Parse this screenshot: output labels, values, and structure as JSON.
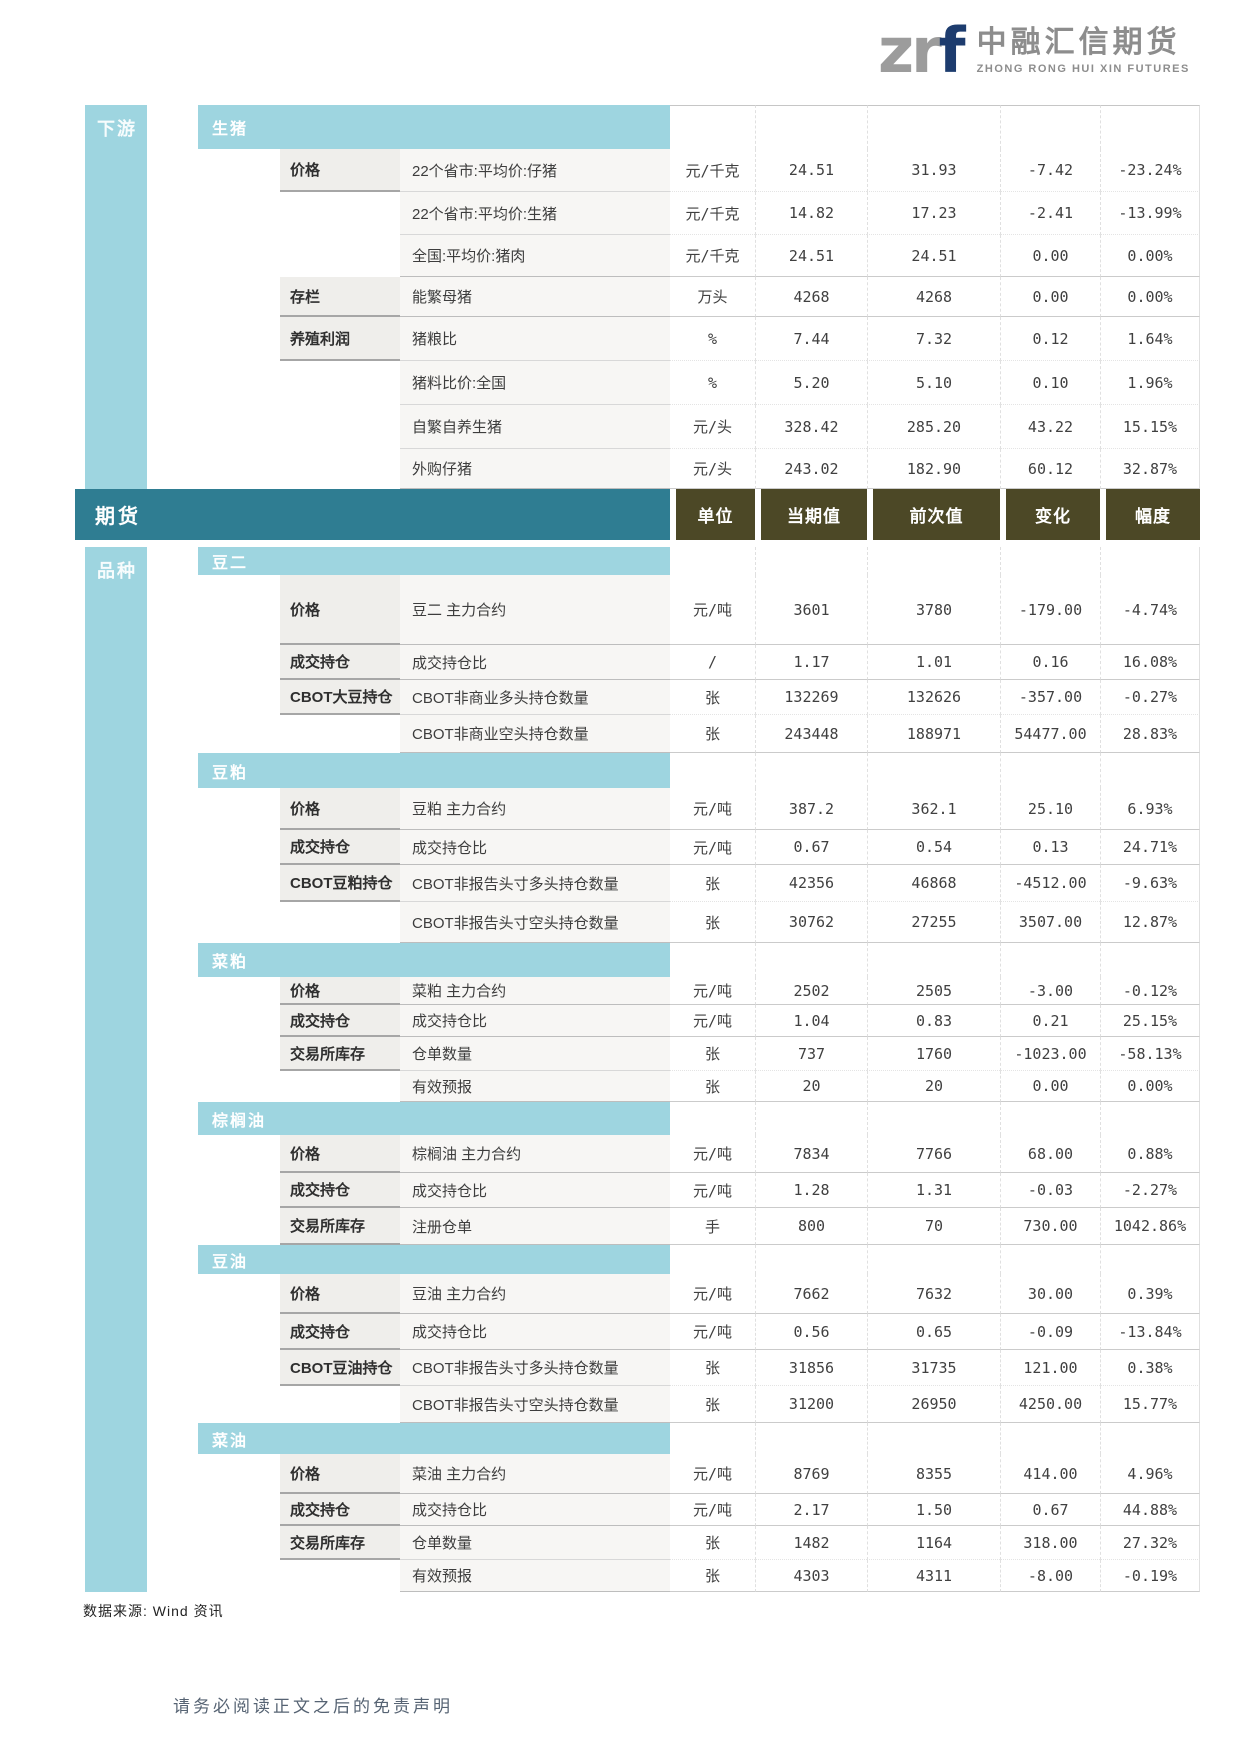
{
  "logo": {
    "mark_zr": "zr",
    "mark_f": "f",
    "company_cn": "中融汇信期货",
    "company_en": "ZHONG RONG HUI XIN FUTURES"
  },
  "columns": [
    "单位",
    "当期值",
    "前次值",
    "变化",
    "幅度"
  ],
  "futures_band_label": "期货",
  "downstream": {
    "sidebar_label": "下游",
    "sections": [
      {
        "title": "生猪",
        "rows": [
          {
            "category": "价格",
            "indicator": "22个省市:平均价:仔猪",
            "unit": "元/千克",
            "current": "24.51",
            "previous": "31.93",
            "change": "-7.42",
            "pct": "-23.24%"
          },
          {
            "indicator": "22个省市:平均价:生猪",
            "unit": "元/千克",
            "current": "14.82",
            "previous": "17.23",
            "change": "-2.41",
            "pct": "-13.99%"
          },
          {
            "indicator": "全国:平均价:猪肉",
            "unit": "元/千克",
            "current": "24.51",
            "previous": "24.51",
            "change": "0.00",
            "pct": "0.00%"
          },
          {
            "category": "存栏",
            "indicator": "能繁母猪",
            "unit": "万头",
            "current": "4268",
            "previous": "4268",
            "change": "0.00",
            "pct": "0.00%"
          },
          {
            "category": "养殖利润",
            "indicator": "猪粮比",
            "unit": "%",
            "current": "7.44",
            "previous": "7.32",
            "change": "0.12",
            "pct": "1.64%"
          },
          {
            "indicator": "猪料比价:全国",
            "unit": "%",
            "current": "5.20",
            "previous": "5.10",
            "change": "0.10",
            "pct": "1.96%"
          },
          {
            "indicator": "自繁自养生猪",
            "unit": "元/头",
            "current": "328.42",
            "previous": "285.20",
            "change": "43.22",
            "pct": "15.15%"
          },
          {
            "indicator": "外购仔猪",
            "unit": "元/头",
            "current": "243.02",
            "previous": "182.90",
            "change": "60.12",
            "pct": "32.87%"
          }
        ]
      }
    ]
  },
  "varieties": {
    "sidebar_label": "品种",
    "sections": [
      {
        "title": "豆二",
        "rows": [
          {
            "category": "价格",
            "indicator": "豆二 主力合约",
            "unit": "元/吨",
            "current": "3601",
            "previous": "3780",
            "change": "-179.00",
            "pct": "-4.74%"
          },
          {
            "category": "成交持仓",
            "indicator": "成交持仓比",
            "unit": "/",
            "current": "1.17",
            "previous": "1.01",
            "change": "0.16",
            "pct": "16.08%"
          },
          {
            "category": "CBOT大豆持仓",
            "indicator": "CBOT非商业多头持仓数量",
            "unit": "张",
            "current": "132269",
            "previous": "132626",
            "change": "-357.00",
            "pct": "-0.27%"
          },
          {
            "indicator": "CBOT非商业空头持仓数量",
            "unit": "张",
            "current": "243448",
            "previous": "188971",
            "change": "54477.00",
            "pct": "28.83%"
          }
        ]
      },
      {
        "title": "豆粕",
        "rows": [
          {
            "category": "价格",
            "indicator": "豆粕 主力合约",
            "unit": "元/吨",
            "current": "387.2",
            "previous": "362.1",
            "change": "25.10",
            "pct": "6.93%"
          },
          {
            "category": "成交持仓",
            "indicator": "成交持仓比",
            "unit": "元/吨",
            "current": "0.67",
            "previous": "0.54",
            "change": "0.13",
            "pct": "24.71%"
          },
          {
            "category": "CBOT豆粕持仓",
            "indicator": "CBOT非报告头寸多头持仓数量",
            "unit": "张",
            "current": "42356",
            "previous": "46868",
            "change": "-4512.00",
            "pct": "-9.63%"
          },
          {
            "indicator": "CBOT非报告头寸空头持仓数量",
            "unit": "张",
            "current": "30762",
            "previous": "27255",
            "change": "3507.00",
            "pct": "12.87%"
          }
        ]
      },
      {
        "title": "菜粕",
        "rows": [
          {
            "category": "价格",
            "indicator": "菜粕 主力合约",
            "unit": "元/吨",
            "current": "2502",
            "previous": "2505",
            "change": "-3.00",
            "pct": "-0.12%"
          },
          {
            "category": "成交持仓",
            "indicator": "成交持仓比",
            "unit": "元/吨",
            "current": "1.04",
            "previous": "0.83",
            "change": "0.21",
            "pct": "25.15%"
          },
          {
            "category": "交易所库存",
            "indicator": "仓单数量",
            "unit": "张",
            "current": "737",
            "previous": "1760",
            "change": "-1023.00",
            "pct": "-58.13%"
          },
          {
            "indicator": "有效预报",
            "unit": "张",
            "current": "20",
            "previous": "20",
            "change": "0.00",
            "pct": "0.00%"
          }
        ]
      },
      {
        "title": "棕榈油",
        "rows": [
          {
            "category": "价格",
            "indicator": "棕榈油 主力合约",
            "unit": "元/吨",
            "current": "7834",
            "previous": "7766",
            "change": "68.00",
            "pct": "0.88%"
          },
          {
            "category": "成交持仓",
            "indicator": "成交持仓比",
            "unit": "元/吨",
            "current": "1.28",
            "previous": "1.31",
            "change": "-0.03",
            "pct": "-2.27%"
          },
          {
            "category": "交易所库存",
            "indicator": "注册仓单",
            "unit": "手",
            "current": "800",
            "previous": "70",
            "change": "730.00",
            "pct": "1042.86%"
          }
        ]
      },
      {
        "title": "豆油",
        "rows": [
          {
            "category": "价格",
            "indicator": "豆油 主力合约",
            "unit": "元/吨",
            "current": "7662",
            "previous": "7632",
            "change": "30.00",
            "pct": "0.39%"
          },
          {
            "category": "成交持仓",
            "indicator": "成交持仓比",
            "unit": "元/吨",
            "current": "0.56",
            "previous": "0.65",
            "change": "-0.09",
            "pct": "-13.84%"
          },
          {
            "category": "CBOT豆油持仓",
            "indicator": "CBOT非报告头寸多头持仓数量",
            "unit": "张",
            "current": "31856",
            "previous": "31735",
            "change": "121.00",
            "pct": "0.38%"
          },
          {
            "indicator": "CBOT非报告头寸空头持仓数量",
            "unit": "张",
            "current": "31200",
            "previous": "26950",
            "change": "4250.00",
            "pct": "15.77%"
          }
        ]
      },
      {
        "title": "菜油",
        "rows": [
          {
            "category": "价格",
            "indicator": "菜油 主力合约",
            "unit": "元/吨",
            "current": "8769",
            "previous": "8355",
            "change": "414.00",
            "pct": "4.96%"
          },
          {
            "category": "成交持仓",
            "indicator": "成交持仓比",
            "unit": "元/吨",
            "current": "2.17",
            "previous": "1.50",
            "change": "0.67",
            "pct": "44.88%"
          },
          {
            "category": "交易所库存",
            "indicator": "仓单数量",
            "unit": "张",
            "current": "1482",
            "previous": "1164",
            "change": "318.00",
            "pct": "27.32%"
          },
          {
            "indicator": "有效预报",
            "unit": "张",
            "current": "4303",
            "previous": "4311",
            "change": "-8.00",
            "pct": "-0.19%"
          }
        ]
      }
    ]
  },
  "source_note": "数据来源: Wind 资讯",
  "disclaimer": "请务必阅读正文之后的免责声明"
}
